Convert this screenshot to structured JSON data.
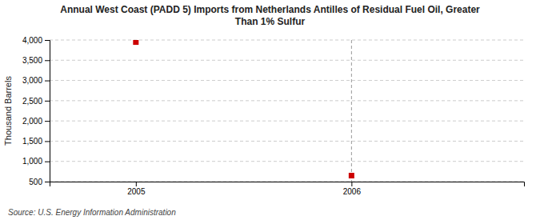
{
  "chart_data": {
    "type": "scatter",
    "title": "Annual West Coast (PADD 5) Imports from Netherlands Antilles of Residual Fuel Oil, Greater\nThan 1% Sulfur",
    "y_label": "Thousand Barrels",
    "source": "Source: U.S. Energy Information Administration",
    "x": [
      2005,
      2006
    ],
    "values": [
      3949,
      648
    ],
    "color": "#cc0000",
    "marker": "square",
    "xlim": [
      2004.6,
      2006.8
    ],
    "xticks": [
      2005,
      2006
    ],
    "ylim": [
      500,
      4000
    ],
    "yticks": [
      500,
      {
        "value": 1000,
        "label": "1,000"
      },
      {
        "value": 1500,
        "label": "1,500"
      },
      {
        "value": 2000,
        "label": "2,000"
      },
      {
        "value": 2500,
        "label": "2,500"
      },
      {
        "value": 3000,
        "label": "3,000"
      },
      {
        "value": 3500,
        "label": "3,500"
      },
      {
        "value": 4000,
        "label": "4,000"
      }
    ],
    "vlines": [
      2006
    ],
    "grid": true
  }
}
